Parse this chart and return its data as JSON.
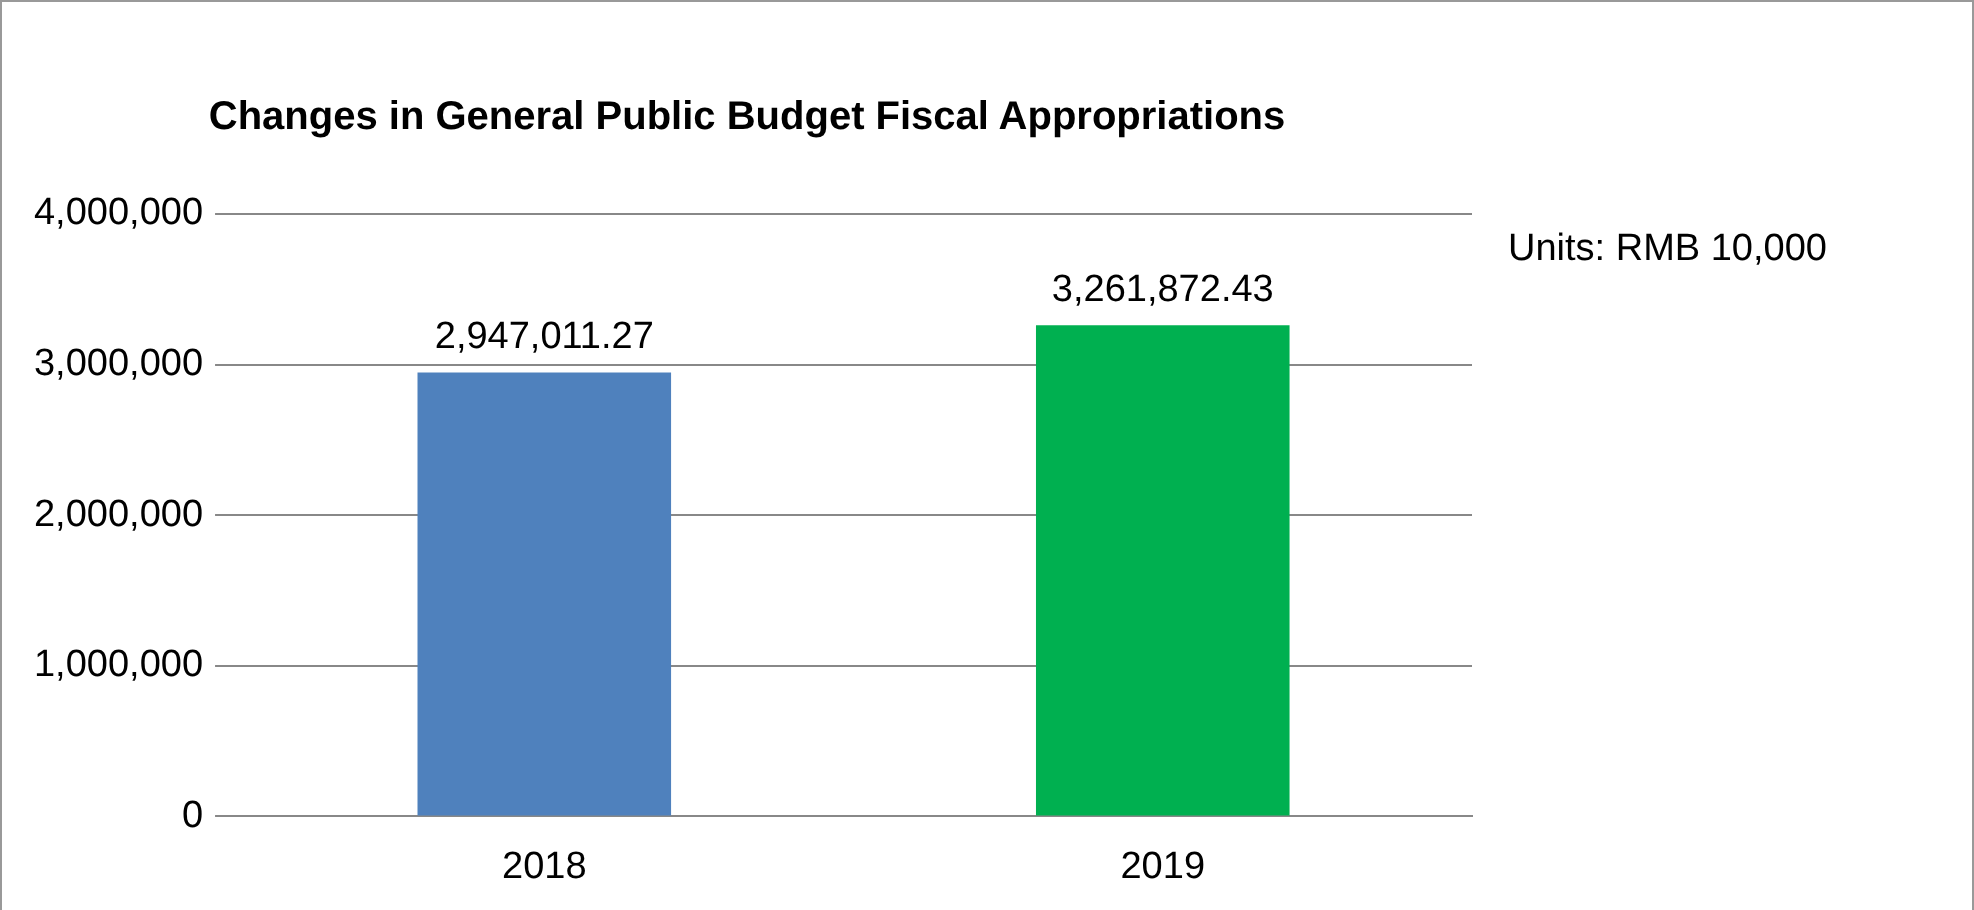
{
  "chart_data": {
    "type": "bar",
    "title": "Changes in General Public Budget Fiscal Appropriations",
    "categories": [
      "2018",
      "2019"
    ],
    "values": [
      2947011.27,
      3261872.43
    ],
    "value_labels": [
      "2,947,011.27",
      "3,261,872.43"
    ],
    "colors": [
      "#4f81bd",
      "#00b050"
    ],
    "ylim": [
      0,
      4000000
    ],
    "yticks": [
      0,
      {
        "value": 1000000,
        "label": "1,000,000"
      },
      {
        "value": 2000000,
        "label": "2,000,000"
      },
      {
        "value": 3000000,
        "label": "3,000,000"
      },
      {
        "value": 4000000,
        "label": "4,000,000"
      }
    ],
    "grid": "y",
    "annotations": [
      "Units: RMB 10,000"
    ]
  }
}
